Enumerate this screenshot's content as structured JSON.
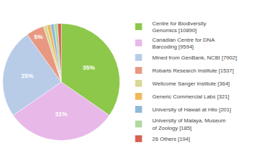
{
  "chart_data": {
    "type": "pie",
    "categories": [
      "Centre for Biodiversity\nGenomics [10890]",
      "Canadian Centre for DNA\nBarcoding [9594]",
      "Mined from GenBank, NCBI [7902]",
      "Robarts Research Institute [1537]",
      "Wellcome Sanger Institute [364]",
      "Generic Commercial Labs [321]",
      "University of Hawaii at Hilo [201]",
      "University of Malaya, Museum\nof Zoology [185]",
      "26 Others [194]"
    ],
    "values": [
      35,
      31,
      25,
      5,
      1,
      1,
      1,
      1,
      1
    ],
    "value_labels": [
      "35%",
      "31%",
      "25%",
      "5%",
      null,
      null,
      null,
      null,
      null
    ],
    "colors": [
      "#8dc84a",
      "#e8b8e8",
      "#b8cce8",
      "#e89880",
      "#d8d898",
      "#f0b858",
      "#90b8d8",
      "#b0d8a0",
      "#d86050"
    ],
    "data_labels": true,
    "legend": "right"
  }
}
